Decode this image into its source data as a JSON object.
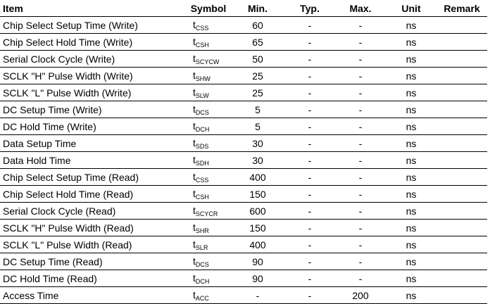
{
  "headers": {
    "item": "Item",
    "symbol": "Symbol",
    "min": "Min.",
    "typ": "Typ.",
    "max": "Max.",
    "unit": "Unit",
    "remark": "Remark"
  },
  "rows": [
    {
      "item": "Chip Select Setup Time (Write)",
      "sym": "t",
      "sub": "CSS",
      "min": "60",
      "typ": "-",
      "max": "-",
      "unit": "ns",
      "remark": ""
    },
    {
      "item": "Chip Select Hold Time (Write)",
      "sym": "t",
      "sub": "CSH",
      "min": "65",
      "typ": "-",
      "max": "-",
      "unit": "ns",
      "remark": ""
    },
    {
      "item": "Serial Clock Cycle (Write)",
      "sym": "t",
      "sub": "SCYCW",
      "min": "50",
      "typ": "-",
      "max": "-",
      "unit": "ns",
      "remark": ""
    },
    {
      "item": "SCLK \"H\" Pulse Width (Write)",
      "sym": "t",
      "sub": "SHW",
      "min": "25",
      "typ": "-",
      "max": "-",
      "unit": "ns",
      "remark": ""
    },
    {
      "item": "SCLK \"L\" Pulse Width (Write)",
      "sym": "t",
      "sub": "SLW",
      "min": "25",
      "typ": "-",
      "max": "-",
      "unit": "ns",
      "remark": ""
    },
    {
      "item": "DC Setup Time (Write)",
      "sym": "t",
      "sub": "DCS",
      "min": "5",
      "typ": "-",
      "max": "-",
      "unit": "ns",
      "remark": ""
    },
    {
      "item": "DC Hold Time (Write)",
      "sym": "t",
      "sub": "DCH",
      "min": "5",
      "typ": "-",
      "max": "-",
      "unit": "ns",
      "remark": ""
    },
    {
      "item": "Data Setup Time",
      "sym": "t",
      "sub": "SDS",
      "min": "30",
      "typ": "-",
      "max": "-",
      "unit": "ns",
      "remark": ""
    },
    {
      "item": "Data Hold Time",
      "sym": "t",
      "sub": "SDH",
      "min": "30",
      "typ": "-",
      "max": "-",
      "unit": "ns",
      "remark": ""
    },
    {
      "item": "Chip Select Setup Time (Read)",
      "sym": "t",
      "sub": "CSS",
      "min": "400",
      "typ": "-",
      "max": "-",
      "unit": "ns",
      "remark": ""
    },
    {
      "item": "Chip Select Hold Time (Read)",
      "sym": "t",
      "sub": "CSH",
      "min": "150",
      "typ": "-",
      "max": "-",
      "unit": "ns",
      "remark": ""
    },
    {
      "item": "Serial Clock Cycle (Read)",
      "sym": "t",
      "sub": "SCYCR",
      "min": "600",
      "typ": "-",
      "max": "-",
      "unit": "ns",
      "remark": ""
    },
    {
      "item": "SCLK \"H\" Pulse Width (Read)",
      "sym": "t",
      "sub": "SHR",
      "min": "150",
      "typ": "-",
      "max": "-",
      "unit": "ns",
      "remark": ""
    },
    {
      "item": "SCLK \"L\" Pulse Width (Read)",
      "sym": "t",
      "sub": "SLR",
      "min": "400",
      "typ": "-",
      "max": "-",
      "unit": "ns",
      "remark": ""
    },
    {
      "item": "DC Setup Time (Read)",
      "sym": "t",
      "sub": "DCS",
      "min": "90",
      "typ": "-",
      "max": "-",
      "unit": "ns",
      "remark": ""
    },
    {
      "item": "DC Hold Time (Read)",
      "sym": "t",
      "sub": "DCH",
      "min": "90",
      "typ": "-",
      "max": "-",
      "unit": "ns",
      "remark": ""
    },
    {
      "item": "Access Time",
      "sym": "t",
      "sub": "ACC",
      "min": "-",
      "typ": "-",
      "max": "200",
      "unit": "ns",
      "remark": ""
    }
  ]
}
